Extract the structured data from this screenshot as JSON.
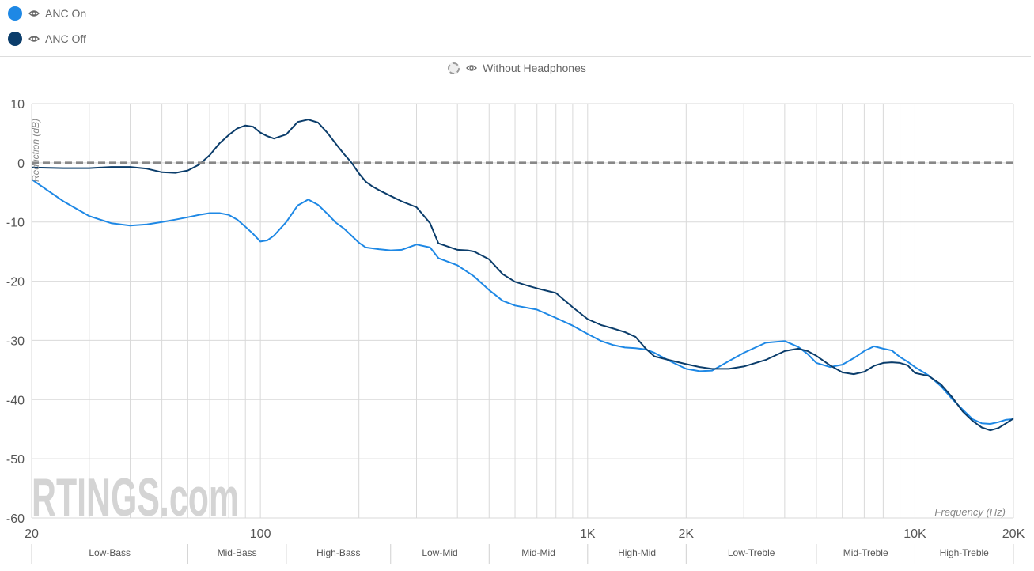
{
  "legend": {
    "series": [
      {
        "label": "ANC On",
        "color": "#1e88e5"
      },
      {
        "label": "ANC Off",
        "color": "#0b3d6b"
      }
    ],
    "reference": {
      "label": "Without Headphones",
      "color": "#888888"
    }
  },
  "watermark": "RTINGS.com",
  "chart_data": {
    "type": "line",
    "ylabel": "Reduction (dB)",
    "xlabel": "Frequency (Hz)",
    "xscale": "log",
    "xlim": [
      20,
      20000
    ],
    "ylim": [
      -60,
      10
    ],
    "yticks": [
      10,
      0,
      -10,
      -20,
      -30,
      -40,
      -50,
      -60
    ],
    "xtick_values": [
      20,
      100,
      1000,
      2000,
      10000,
      20000
    ],
    "xtick_labels": [
      "20",
      "100",
      "1K",
      "2K",
      "10K",
      "20K"
    ],
    "grid": true,
    "bands": [
      {
        "label": "Low-Bass",
        "from": 20,
        "to": 60
      },
      {
        "label": "Mid-Bass",
        "from": 60,
        "to": 120
      },
      {
        "label": "High-Bass",
        "from": 120,
        "to": 250
      },
      {
        "label": "Low-Mid",
        "from": 250,
        "to": 500
      },
      {
        "label": "Mid-Mid",
        "from": 500,
        "to": 1000
      },
      {
        "label": "High-Mid",
        "from": 1000,
        "to": 2000
      },
      {
        "label": "Low-Treble",
        "from": 2000,
        "to": 5000
      },
      {
        "label": "Mid-Treble",
        "from": 5000,
        "to": 10000
      },
      {
        "label": "High-Treble",
        "from": 10000,
        "to": 20000
      }
    ],
    "series": [
      {
        "name": "ANC On",
        "color": "#1e88e5",
        "x": [
          20,
          25,
          30,
          35,
          40,
          45,
          50,
          55,
          60,
          65,
          70,
          75,
          80,
          85,
          90,
          95,
          100,
          105,
          110,
          120,
          130,
          140,
          150,
          160,
          170,
          180,
          200,
          210,
          230,
          250,
          270,
          300,
          330,
          350,
          400,
          450,
          500,
          550,
          600,
          700,
          800,
          900,
          1000,
          1100,
          1200,
          1300,
          1400,
          1500,
          1600,
          1800,
          2000,
          2200,
          2400,
          2700,
          3000,
          3500,
          4000,
          4400,
          4700,
          5000,
          5500,
          6000,
          6500,
          7000,
          7500,
          8000,
          8500,
          9000,
          9500,
          10000,
          11000,
          12000,
          13000,
          14000,
          15000,
          16000,
          17000,
          18000,
          19000,
          20000
        ],
        "y": [
          -2.8,
          -6.5,
          -9,
          -10.2,
          -10.6,
          -10.4,
          -10,
          -9.6,
          -9.2,
          -8.8,
          -8.5,
          -8.5,
          -8.8,
          -9.6,
          -10.8,
          -12,
          -13.3,
          -13.1,
          -12.3,
          -10,
          -7.2,
          -6.2,
          -7.1,
          -8.6,
          -10.1,
          -11.1,
          -13.5,
          -14.3,
          -14.6,
          -14.8,
          -14.7,
          -13.8,
          -14.3,
          -16.1,
          -17.3,
          -19.2,
          -21.5,
          -23.3,
          -24.1,
          -24.8,
          -26.2,
          -27.5,
          -28.9,
          -30.1,
          -30.8,
          -31.2,
          -31.3,
          -31.5,
          -32.1,
          -33.6,
          -34.8,
          -35.2,
          -35.1,
          -33.5,
          -32.1,
          -30.4,
          -30.1,
          -31.1,
          -32.3,
          -33.8,
          -34.5,
          -34.1,
          -33.0,
          -31.8,
          -31.0,
          -31.4,
          -31.7,
          -32.8,
          -33.6,
          -34.5,
          -35.9,
          -37.7,
          -39.9,
          -41.7,
          -43.3,
          -44.0,
          -44.1,
          -43.8,
          -43.4,
          -43.3
        ]
      },
      {
        "name": "ANC Off",
        "color": "#0b3d6b",
        "x": [
          20,
          25,
          30,
          35,
          40,
          45,
          50,
          55,
          60,
          65,
          70,
          75,
          80,
          85,
          90,
          95,
          100,
          105,
          110,
          120,
          130,
          140,
          150,
          160,
          170,
          180,
          190,
          200,
          210,
          220,
          230,
          250,
          270,
          300,
          330,
          350,
          400,
          430,
          450,
          500,
          550,
          600,
          650,
          700,
          800,
          900,
          1000,
          1100,
          1200,
          1300,
          1400,
          1500,
          1600,
          1800,
          2000,
          2200,
          2400,
          2700,
          3000,
          3500,
          4000,
          4400,
          4700,
          5000,
          5500,
          6000,
          6500,
          7000,
          7500,
          8000,
          8500,
          9000,
          9500,
          10000,
          11000,
          12000,
          13000,
          14000,
          15000,
          16000,
          17000,
          18000,
          19000,
          20000
        ],
        "y": [
          -0.8,
          -0.9,
          -0.9,
          -0.7,
          -0.7,
          -1.0,
          -1.6,
          -1.7,
          -1.3,
          -0.3,
          1.3,
          3.3,
          4.7,
          5.8,
          6.3,
          6.1,
          5.1,
          4.5,
          4.1,
          4.8,
          6.9,
          7.3,
          6.8,
          5.1,
          3.2,
          1.5,
          0.0,
          -1.8,
          -3.2,
          -4.0,
          -4.6,
          -5.6,
          -6.5,
          -7.5,
          -10.2,
          -13.6,
          -14.7,
          -14.8,
          -15.0,
          -16.3,
          -18.8,
          -20.1,
          -20.7,
          -21.2,
          -22.0,
          -24.4,
          -26.4,
          -27.4,
          -28.0,
          -28.6,
          -29.4,
          -31.3,
          -32.7,
          -33.4,
          -34.0,
          -34.5,
          -34.8,
          -34.8,
          -34.4,
          -33.3,
          -31.8,
          -31.4,
          -31.8,
          -32.6,
          -34.2,
          -35.4,
          -35.7,
          -35.3,
          -34.3,
          -33.8,
          -33.7,
          -33.8,
          -34.2,
          -35.5,
          -36.0,
          -37.4,
          -39.6,
          -42.0,
          -43.6,
          -44.7,
          -45.2,
          -44.8,
          -44.0,
          -43.2
        ]
      },
      {
        "name": "Without Headphones",
        "color": "#888888",
        "style": "dashed",
        "x": [
          20,
          20000
        ],
        "y": [
          0,
          0
        ]
      }
    ]
  }
}
